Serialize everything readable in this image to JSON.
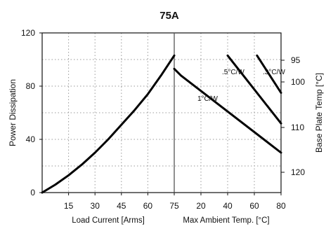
{
  "chart_data": {
    "type": "line",
    "title": "75A",
    "ylabel": "Power Dissipation",
    "ylabel_right": "Base Plate Temp [°C]",
    "ylim": [
      0,
      120
    ],
    "left_panel": {
      "xlabel": "Load Current [Arms]",
      "xlim": [
        0,
        75
      ],
      "x_ticks": [
        "15",
        "30",
        "45",
        "60",
        "75"
      ],
      "series": [
        {
          "x": [
            0,
            7.5,
            15,
            22.5,
            30,
            37.5,
            45,
            52.5,
            60,
            67.5,
            75
          ],
          "values": [
            0,
            6,
            13,
            21,
            30,
            40,
            51,
            62,
            74,
            88,
            103
          ]
        }
      ]
    },
    "right_panel": {
      "xlabel": "Max Ambient Temp. [°C]",
      "xlim": [
        0,
        80
      ],
      "x_ticks": [
        "20",
        "40",
        "60",
        "80"
      ],
      "right_ticks": [
        "95",
        "100",
        "110",
        "120"
      ],
      "series": [
        {
          "name": "1°C/W",
          "x": [
            0,
            5,
            80
          ],
          "values": [
            93,
            88,
            30
          ]
        },
        {
          "name": ".5°C/W",
          "x": [
            40,
            80
          ],
          "values": [
            103,
            52
          ]
        },
        {
          "name": ".3°C/W",
          "x": [
            62,
            80
          ],
          "values": [
            103,
            75
          ]
        }
      ]
    },
    "y_ticks": [
      "0",
      "40",
      "80",
      "120"
    ],
    "grid": true
  }
}
